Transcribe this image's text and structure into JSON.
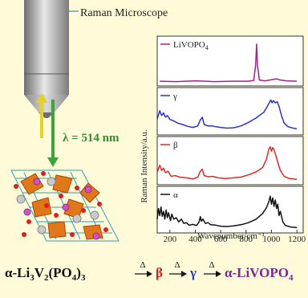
{
  "figure": {
    "microscope_label": "Raman Microscope",
    "wavelength_label": "λ = 514 nm",
    "equation": {
      "start": "α-Li",
      "sub1": "3",
      "mid1": "V",
      "sub2": "2",
      "mid2": "(PO",
      "sub3": "4",
      "mid3": ")",
      "sub4": "3",
      "delta": "Δ",
      "beta": "β",
      "gamma": "γ",
      "end": "α-LiVOPO",
      "end_sub": "4"
    },
    "colors": {
      "background": "#fffbd9",
      "magenta": "#a5208f",
      "blue": "#2b32d8",
      "red": "#e42727",
      "black": "#111111",
      "green_arrow": "#3aa63a",
      "yellow_arrow": "#e6d21a",
      "equation_red": "#d61f1f",
      "equation_blue": "#2038c8",
      "equation_purple": "#7b2a92"
    }
  },
  "chart_data": {
    "type": "line",
    "xlabel": "Wavenumber/cm⁻¹",
    "ylabel": "Raman Intensity/a.u.",
    "xlim": [
      100,
      1250
    ],
    "x_ticks": [
      200,
      400,
      600,
      800,
      1000,
      1200
    ],
    "grid": false,
    "series": [
      {
        "name": "LiVOPO4",
        "label_main": "LiVOPO",
        "label_sub": "4",
        "color": "#a5208f",
        "points": [
          [
            120,
            0.04
          ],
          [
            250,
            0.03
          ],
          [
            400,
            0.05
          ],
          [
            550,
            0.03
          ],
          [
            700,
            0.04
          ],
          [
            820,
            0.04
          ],
          [
            860,
            0.06
          ],
          [
            875,
            0.45
          ],
          [
            883,
            1.0
          ],
          [
            890,
            0.45
          ],
          [
            905,
            0.07
          ],
          [
            950,
            0.05
          ],
          [
            1000,
            0.08
          ],
          [
            1040,
            0.1
          ],
          [
            1070,
            0.07
          ],
          [
            1120,
            0.05
          ],
          [
            1200,
            0.04
          ]
        ]
      },
      {
        "name": "γ",
        "color": "#2b32d8",
        "points": [
          [
            100,
            0.35
          ],
          [
            120,
            0.58
          ],
          [
            135,
            0.45
          ],
          [
            150,
            0.52
          ],
          [
            165,
            0.4
          ],
          [
            180,
            0.45
          ],
          [
            200,
            0.34
          ],
          [
            230,
            0.3
          ],
          [
            260,
            0.24
          ],
          [
            300,
            0.2
          ],
          [
            340,
            0.15
          ],
          [
            380,
            0.12
          ],
          [
            420,
            0.16
          ],
          [
            440,
            0.33
          ],
          [
            455,
            0.4
          ],
          [
            470,
            0.2
          ],
          [
            500,
            0.16
          ],
          [
            530,
            0.16
          ],
          [
            560,
            0.14
          ],
          [
            600,
            0.12
          ],
          [
            650,
            0.1
          ],
          [
            700,
            0.11
          ],
          [
            760,
            0.16
          ],
          [
            820,
            0.26
          ],
          [
            880,
            0.38
          ],
          [
            940,
            0.54
          ],
          [
            970,
            0.72
          ],
          [
            985,
            0.82
          ],
          [
            995,
            0.88
          ],
          [
            1005,
            0.8
          ],
          [
            1015,
            0.86
          ],
          [
            1030,
            0.8
          ],
          [
            1045,
            0.83
          ],
          [
            1060,
            0.7
          ],
          [
            1080,
            0.44
          ],
          [
            1100,
            0.24
          ],
          [
            1130,
            0.14
          ],
          [
            1170,
            0.1
          ],
          [
            1200,
            0.08
          ]
        ]
      },
      {
        "name": "β",
        "color": "#e42727",
        "points": [
          [
            100,
            0.25
          ],
          [
            120,
            0.44
          ],
          [
            135,
            0.3
          ],
          [
            150,
            0.36
          ],
          [
            165,
            0.24
          ],
          [
            185,
            0.28
          ],
          [
            210,
            0.14
          ],
          [
            240,
            0.16
          ],
          [
            280,
            0.12
          ],
          [
            330,
            0.1
          ],
          [
            380,
            0.07
          ],
          [
            420,
            0.12
          ],
          [
            440,
            0.28
          ],
          [
            455,
            0.33
          ],
          [
            470,
            0.16
          ],
          [
            500,
            0.13
          ],
          [
            540,
            0.14
          ],
          [
            580,
            0.1
          ],
          [
            640,
            0.08
          ],
          [
            700,
            0.1
          ],
          [
            760,
            0.12
          ],
          [
            820,
            0.18
          ],
          [
            880,
            0.26
          ],
          [
            930,
            0.38
          ],
          [
            960,
            0.6
          ],
          [
            980,
            0.88
          ],
          [
            990,
            0.94
          ],
          [
            1000,
            0.82
          ],
          [
            1010,
            0.92
          ],
          [
            1020,
            0.86
          ],
          [
            1035,
            0.7
          ],
          [
            1050,
            0.52
          ],
          [
            1070,
            0.3
          ],
          [
            1100,
            0.14
          ],
          [
            1140,
            0.08
          ],
          [
            1200,
            0.06
          ]
        ]
      },
      {
        "name": "α",
        "color": "#111111",
        "points": [
          [
            100,
            0.3
          ],
          [
            110,
            0.6
          ],
          [
            120,
            0.4
          ],
          [
            130,
            0.64
          ],
          [
            140,
            0.38
          ],
          [
            150,
            0.52
          ],
          [
            160,
            0.3
          ],
          [
            170,
            0.56
          ],
          [
            180,
            0.34
          ],
          [
            190,
            0.48
          ],
          [
            205,
            0.26
          ],
          [
            215,
            0.44
          ],
          [
            230,
            0.3
          ],
          [
            250,
            0.34
          ],
          [
            270,
            0.22
          ],
          [
            290,
            0.3
          ],
          [
            310,
            0.18
          ],
          [
            330,
            0.2
          ],
          [
            350,
            0.13
          ],
          [
            380,
            0.15
          ],
          [
            410,
            0.12
          ],
          [
            430,
            0.22
          ],
          [
            440,
            0.37
          ],
          [
            448,
            0.24
          ],
          [
            460,
            0.3
          ],
          [
            480,
            0.18
          ],
          [
            500,
            0.2
          ],
          [
            520,
            0.14
          ],
          [
            560,
            0.13
          ],
          [
            600,
            0.1
          ],
          [
            650,
            0.09
          ],
          [
            700,
            0.11
          ],
          [
            760,
            0.14
          ],
          [
            820,
            0.2
          ],
          [
            880,
            0.3
          ],
          [
            930,
            0.46
          ],
          [
            960,
            0.62
          ],
          [
            980,
            0.8
          ],
          [
            990,
            0.95
          ],
          [
            1000,
            0.72
          ],
          [
            1010,
            0.9
          ],
          [
            1020,
            0.66
          ],
          [
            1030,
            0.84
          ],
          [
            1040,
            0.6
          ],
          [
            1050,
            0.72
          ],
          [
            1060,
            0.4
          ],
          [
            1070,
            0.52
          ],
          [
            1090,
            0.22
          ],
          [
            1110,
            0.12
          ],
          [
            1150,
            0.08
          ],
          [
            1200,
            0.06
          ]
        ]
      }
    ]
  }
}
